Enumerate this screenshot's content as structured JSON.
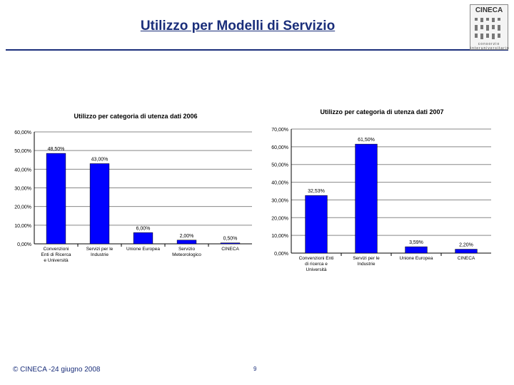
{
  "slide": {
    "title": "Utilizzo per Modelli di Servizio",
    "footer_copyright": "© CINECA -24 giugno 2008",
    "page_number": "9"
  },
  "logo": {
    "name": "CINECA",
    "subtitle": "consorzio interuniversitario"
  },
  "colors": {
    "accent": "#1a2e7a",
    "bar": "#0000ff"
  },
  "chart_data": [
    {
      "type": "bar",
      "title": "Utilizzo per categoria di utenza dati 2006",
      "categories": [
        "Convenzioni Enti di Ricerca e Università",
        "Servizi per le Industrie",
        "Unione Europea",
        "Servizio Meteorologico",
        "CINECA"
      ],
      "category_lines": [
        [
          "Convenzioni",
          "Enti di Ricerca",
          "e Università"
        ],
        [
          "Servizi per le",
          "Industrie"
        ],
        [
          "Unione Europea"
        ],
        [
          "Servizio",
          "Meteorologico"
        ],
        [
          "CINECA"
        ]
      ],
      "values": [
        48.5,
        43.0,
        6.0,
        2.0,
        0.5
      ],
      "data_labels": [
        "48,50%",
        "43,00%",
        "6,00%",
        "2,00%",
        "0,50%"
      ],
      "ylim": [
        0,
        60
      ],
      "ytick_labels": [
        "0,00%",
        "10,00%",
        "20,00%",
        "30,00%",
        "40,00%",
        "50,00%",
        "60,00%"
      ],
      "xlabel": "",
      "ylabel": "",
      "grid": true
    },
    {
      "type": "bar",
      "title": "Utilizzo per categoria di utenza dati 2007",
      "categories": [
        "Convenzioni Enti di ricerca e Università",
        "Servizi per le Industrie",
        "Unione Europea",
        "CINECA"
      ],
      "category_lines": [
        [
          "Convenzioni Enti",
          "di ricerca e",
          "Università"
        ],
        [
          "Servizi per le",
          "Industrie"
        ],
        [
          "Unione Europea"
        ],
        [
          "CINECA"
        ]
      ],
      "values": [
        32.53,
        61.5,
        3.59,
        2.2
      ],
      "data_labels": [
        "32,53%",
        "61,50%",
        "3,59%",
        "2,20%"
      ],
      "ylim": [
        0,
        70
      ],
      "ytick_labels": [
        "0,00%",
        "10,00%",
        "20,00%",
        "30,00%",
        "40,00%",
        "50,00%",
        "60,00%",
        "70,00%"
      ],
      "xlabel": "",
      "ylabel": "",
      "grid": true
    }
  ]
}
